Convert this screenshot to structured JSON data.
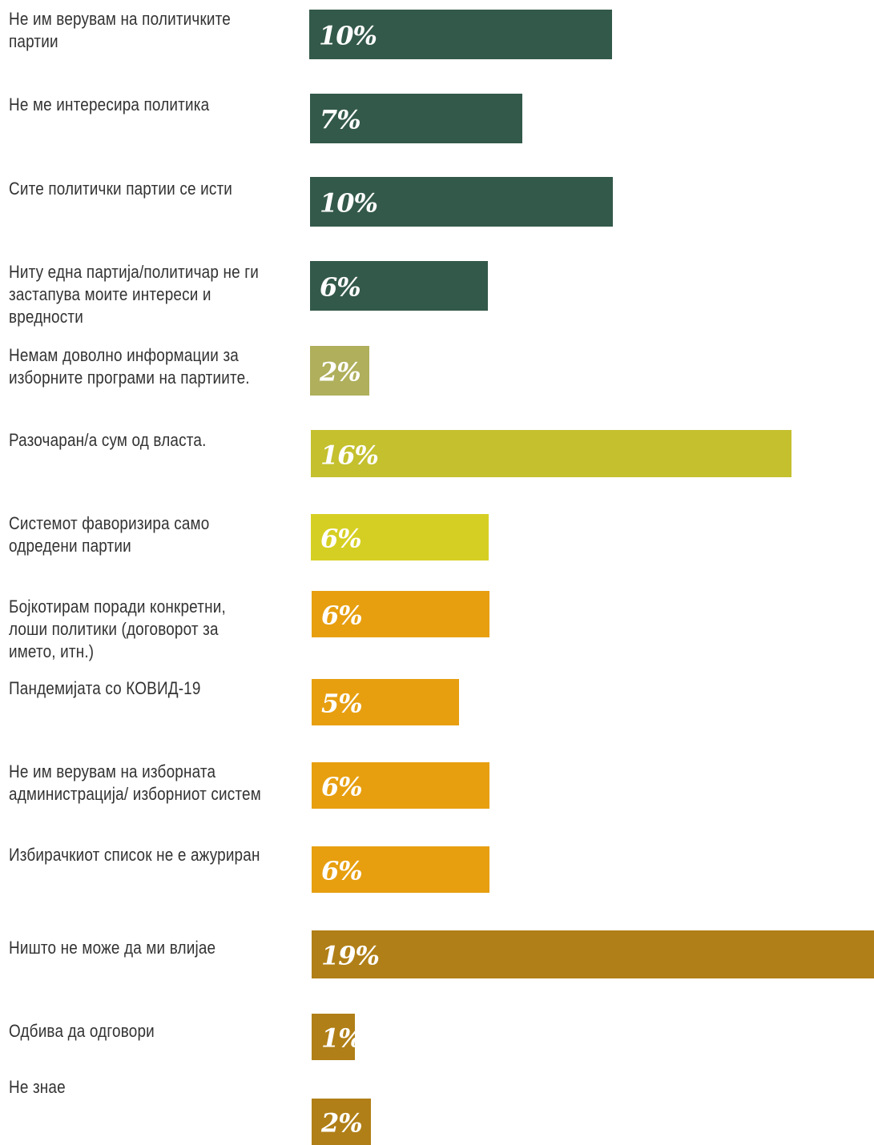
{
  "chart_data": {
    "type": "bar",
    "orientation": "horizontal",
    "title": "",
    "xlabel": "",
    "ylabel": "",
    "xlim": [
      0,
      19
    ],
    "grid": false,
    "legend": "none",
    "value_suffix": "%",
    "categories": [
      "Не им верувам на политичките партии",
      "Не ме интересира политика",
      "Сите политички партии се исти",
      "Ниту една партија/политичар не ги застапува моите интереси и вредности",
      "Немам доволно информации за изборните програми на партиите.",
      "Разочаран/а сум од власта.",
      "Системот фаворизира само одредени партии",
      "Бојкотирам поради конкретни, лоши политики (договорот за името, итн.)",
      "Пандемијата со КОВИД-19",
      "Не им верувам на изборната администрација/ изборниот систем",
      "Избирачкиот список не е ажуриран",
      "Ништо не може да ми влијае",
      "Одбива да одговори",
      "Не знае"
    ],
    "values": [
      10,
      7,
      10,
      6,
      2,
      16,
      6,
      6,
      5,
      6,
      6,
      19,
      1,
      2
    ],
    "value_labels": [
      "10%",
      "7%",
      "10%",
      "6%",
      "2%",
      "16%",
      "6%",
      "6%",
      "5%",
      "6%",
      "6%",
      "19%",
      "1%",
      "2%"
    ],
    "colors": [
      "#33594a",
      "#33594a",
      "#33594a",
      "#33594a",
      "#afaf5c",
      "#c4c02e",
      "#d6cf23",
      "#e79f10",
      "#e79f10",
      "#e79f10",
      "#e79f10",
      "#b07f17",
      "#b07f17",
      "#b07f17"
    ]
  }
}
